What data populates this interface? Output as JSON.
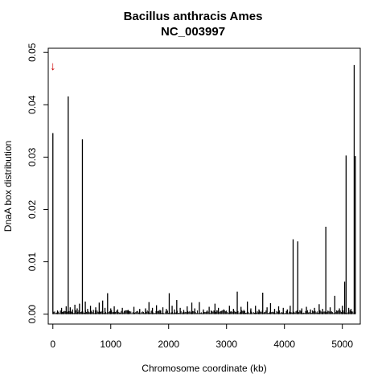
{
  "chart_data": {
    "type": "bar",
    "title": "Bacillus anthracis Ames",
    "subtitle": "NC_003997",
    "xlabel": "Chromosome coordinate (kb)",
    "ylabel": "DnaA box distribution",
    "xlim": [
      -80,
      5310
    ],
    "ylim": [
      -0.0019,
      0.0508
    ],
    "xticks": [
      0,
      1000,
      2000,
      3000,
      4000,
      5000
    ],
    "xtick_labels": [
      "0",
      "1000",
      "2000",
      "3000",
      "4000",
      "5000"
    ],
    "yticks": [
      0,
      0.01,
      0.02,
      0.03,
      0.04,
      0.05
    ],
    "ytick_labels": [
      "0.00",
      "0.01",
      "0.02",
      "0.03",
      "0.04",
      "0.05"
    ],
    "grid": false,
    "marker": {
      "x": 0,
      "symbol": "↓",
      "color": "#cc0000"
    },
    "series": [
      {
        "x": [
          0,
          80,
          150,
          180,
          230,
          265,
          300,
          340,
          380,
          420,
          460,
          510,
          560,
          600,
          650,
          700,
          740,
          800,
          860,
          900,
          945,
          1000,
          1060,
          1120,
          1200,
          1300,
          1400,
          1500,
          1600,
          1660,
          1720,
          1790,
          1850,
          1900,
          1960,
          2010,
          2060,
          2100,
          2140,
          2200,
          2260,
          2320,
          2400,
          2450,
          2530,
          2600,
          2700,
          2800,
          2860,
          2950,
          3050,
          3120,
          3185,
          3250,
          3300,
          3360,
          3420,
          3500,
          3560,
          3625,
          3700,
          3760,
          3830,
          3900,
          3980,
          4050,
          4100,
          4150,
          4230,
          4300,
          4380,
          4450,
          4520,
          4600,
          4660,
          4715,
          4790,
          4870,
          4950,
          5000,
          5040,
          5065,
          5110,
          5150,
          5205,
          5225
        ],
        "values": [
          0.0346,
          0.0007,
          0.0012,
          0.0005,
          0.0015,
          0.0416,
          0.0013,
          0.0009,
          0.0018,
          0.0011,
          0.002,
          0.0334,
          0.0024,
          0.001,
          0.0016,
          0.0008,
          0.0013,
          0.0022,
          0.0026,
          0.0012,
          0.004,
          0.0011,
          0.0015,
          0.0009,
          0.0012,
          0.0008,
          0.0014,
          0.001,
          0.0011,
          0.0023,
          0.0012,
          0.0017,
          0.0008,
          0.0013,
          0.001,
          0.004,
          0.0016,
          0.0009,
          0.0027,
          0.0012,
          0.0008,
          0.0015,
          0.0022,
          0.0011,
          0.0023,
          0.0009,
          0.0014,
          0.002,
          0.0012,
          0.0009,
          0.0016,
          0.001,
          0.0043,
          0.0014,
          0.0008,
          0.0024,
          0.0011,
          0.0016,
          0.0009,
          0.0041,
          0.0013,
          0.0021,
          0.001,
          0.0015,
          0.0012,
          0.0009,
          0.0016,
          0.0143,
          0.0139,
          0.0011,
          0.0014,
          0.0009,
          0.0012,
          0.0019,
          0.001,
          0.0167,
          0.0013,
          0.0035,
          0.0011,
          0.0016,
          0.0062,
          0.0303,
          0.0012,
          0.001,
          0.0476,
          0.0302
        ]
      }
    ]
  }
}
